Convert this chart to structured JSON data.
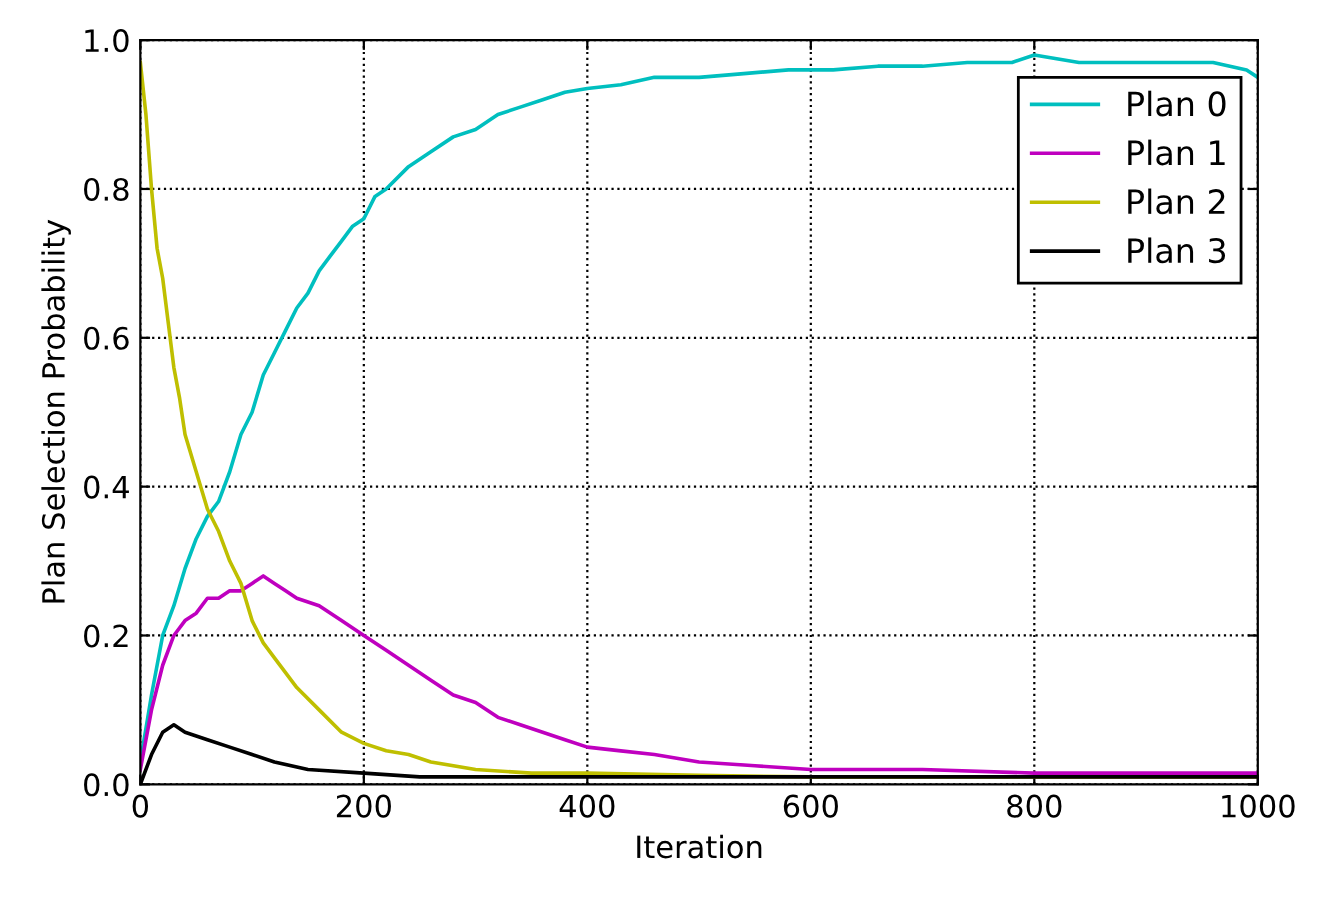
{
  "chart_data": {
    "type": "line",
    "xlabel": "Iteration",
    "ylabel": "Plan Selection Probability",
    "xlim": [
      0,
      1000
    ],
    "ylim": [
      0,
      1.0
    ],
    "xticks": [
      0,
      200,
      400,
      600,
      800,
      1000
    ],
    "yticks": [
      {
        "value": 0,
        "label": "0.0"
      },
      0.2,
      0.4,
      0.6,
      0.8,
      {
        "value": 1,
        "label": "1.0"
      }
    ],
    "grid": true,
    "legend": "top right",
    "series": [
      {
        "name": "Plan 0",
        "color": "#00bfbf",
        "x": [
          0,
          10,
          20,
          30,
          40,
          50,
          60,
          70,
          80,
          90,
          100,
          110,
          120,
          130,
          140,
          150,
          160,
          170,
          180,
          190,
          200,
          210,
          220,
          240,
          260,
          280,
          300,
          320,
          340,
          360,
          380,
          400,
          430,
          460,
          500,
          540,
          580,
          620,
          660,
          700,
          740,
          780,
          800,
          840,
          880,
          920,
          960,
          990,
          1000
        ],
        "values": [
          0.03,
          0.12,
          0.2,
          0.24,
          0.29,
          0.33,
          0.36,
          0.38,
          0.42,
          0.47,
          0.5,
          0.55,
          0.58,
          0.61,
          0.64,
          0.66,
          0.69,
          0.71,
          0.73,
          0.75,
          0.76,
          0.79,
          0.8,
          0.83,
          0.85,
          0.87,
          0.88,
          0.9,
          0.91,
          0.92,
          0.93,
          0.935,
          0.94,
          0.95,
          0.95,
          0.955,
          0.96,
          0.96,
          0.965,
          0.965,
          0.97,
          0.97,
          0.98,
          0.97,
          0.97,
          0.97,
          0.97,
          0.96,
          0.95
        ]
      },
      {
        "name": "Plan 1",
        "color": "#bf00bf",
        "x": [
          0,
          10,
          20,
          30,
          40,
          50,
          60,
          70,
          80,
          90,
          100,
          110,
          120,
          130,
          140,
          160,
          180,
          200,
          220,
          240,
          260,
          280,
          300,
          320,
          340,
          360,
          380,
          400,
          430,
          460,
          500,
          550,
          600,
          700,
          800,
          900,
          1000
        ],
        "values": [
          0.02,
          0.1,
          0.16,
          0.2,
          0.22,
          0.23,
          0.25,
          0.25,
          0.26,
          0.26,
          0.27,
          0.28,
          0.27,
          0.26,
          0.25,
          0.24,
          0.22,
          0.2,
          0.18,
          0.16,
          0.14,
          0.12,
          0.11,
          0.09,
          0.08,
          0.07,
          0.06,
          0.05,
          0.045,
          0.04,
          0.03,
          0.025,
          0.02,
          0.02,
          0.015,
          0.015,
          0.015
        ]
      },
      {
        "name": "Plan 2",
        "color": "#bfbf00",
        "x": [
          0,
          5,
          10,
          15,
          20,
          25,
          30,
          35,
          40,
          50,
          60,
          70,
          80,
          90,
          100,
          110,
          120,
          140,
          160,
          180,
          200,
          220,
          240,
          260,
          300,
          350,
          400,
          500,
          600,
          800,
          1000
        ],
        "values": [
          0.97,
          0.9,
          0.8,
          0.72,
          0.68,
          0.62,
          0.56,
          0.52,
          0.47,
          0.42,
          0.37,
          0.34,
          0.3,
          0.27,
          0.22,
          0.19,
          0.17,
          0.13,
          0.1,
          0.07,
          0.055,
          0.045,
          0.04,
          0.03,
          0.02,
          0.015,
          0.015,
          0.012,
          0.01,
          0.01,
          0.01
        ]
      },
      {
        "name": "Plan 3",
        "color": "#000000",
        "x": [
          0,
          10,
          20,
          30,
          40,
          60,
          80,
          100,
          120,
          150,
          200,
          250,
          300,
          400,
          600,
          800,
          1000
        ],
        "values": [
          0.0,
          0.04,
          0.07,
          0.08,
          0.07,
          0.06,
          0.05,
          0.04,
          0.03,
          0.02,
          0.015,
          0.01,
          0.01,
          0.01,
          0.01,
          0.01,
          0.01
        ]
      }
    ]
  }
}
